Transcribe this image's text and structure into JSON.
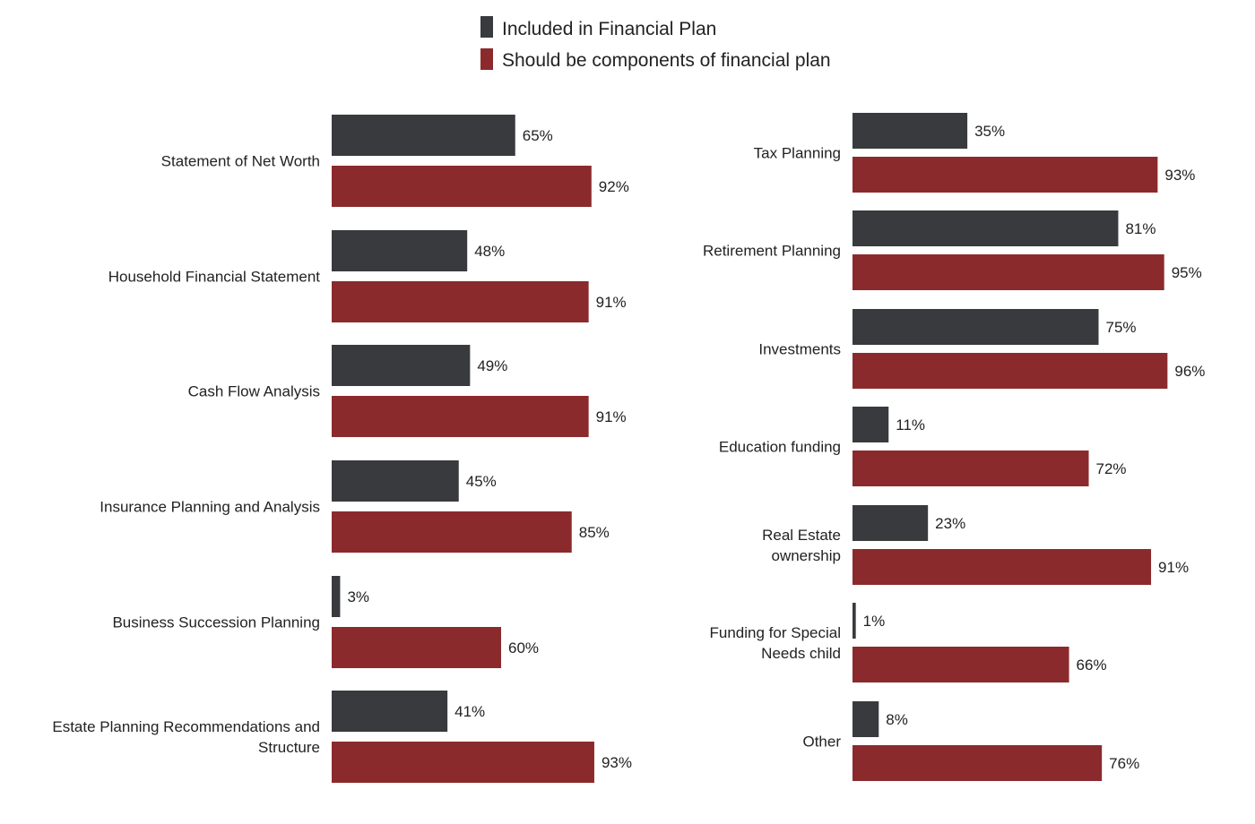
{
  "legend": {
    "items": [
      {
        "label": "Included in Financial Plan",
        "color": "#383a3d"
      },
      {
        "label": "Should be components of financial plan",
        "color": "#8b2a2c"
      }
    ]
  },
  "chart_data": [
    {
      "type": "bar",
      "orientation": "horizontal",
      "series": [
        {
          "name": "Included in Financial Plan",
          "color": "#383a3d",
          "values": [
            65,
            48,
            49,
            45,
            3,
            41
          ]
        },
        {
          "name": "Should be components of financial plan",
          "color": "#8b2a2c",
          "values": [
            92,
            91,
            91,
            85,
            60,
            93
          ]
        }
      ],
      "categories": [
        "Statement of Net Worth",
        "Household Financial Statement",
        "Cash Flow Analysis",
        "Insurance Planning and Analysis",
        "Business Succession Planning",
        "Estate Planning Recommendations and Structure"
      ],
      "value_suffix": "%",
      "xlim": [
        0,
        100
      ],
      "grid": false,
      "legend_position": "top"
    },
    {
      "type": "bar",
      "orientation": "horizontal",
      "series": [
        {
          "name": "Included in Financial Plan",
          "color": "#383a3d",
          "values": [
            35,
            81,
            75,
            11,
            23,
            1,
            8
          ]
        },
        {
          "name": "Should be components of financial plan",
          "color": "#8b2a2c",
          "values": [
            93,
            95,
            96,
            72,
            91,
            66,
            76
          ]
        }
      ],
      "categories": [
        "Tax Planning",
        "Retirement Planning",
        "Investments",
        "Education funding",
        "Real Estate ownership",
        "Funding for Special Needs child",
        "Other"
      ],
      "value_suffix": "%",
      "xlim": [
        0,
        100
      ],
      "grid": false,
      "legend_position": "top"
    }
  ]
}
